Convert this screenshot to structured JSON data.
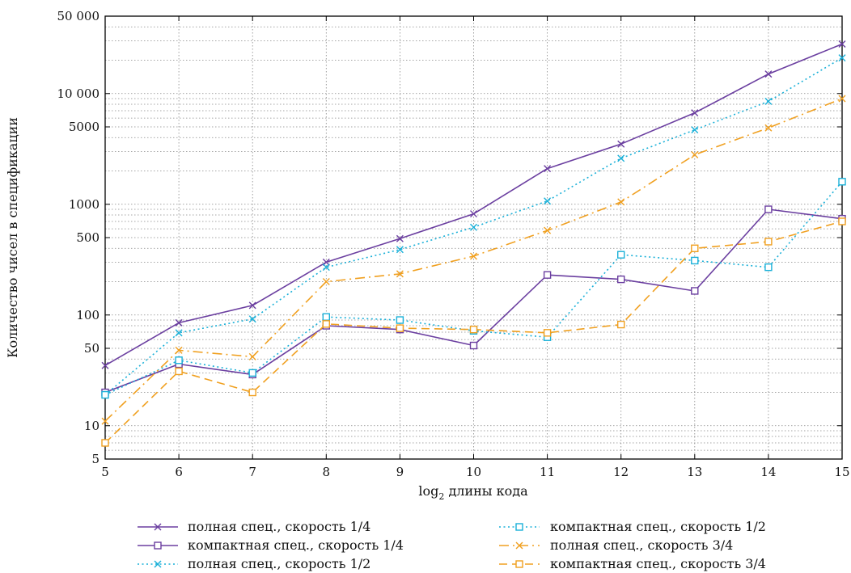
{
  "chart_data": {
    "type": "line",
    "xlabel_prefix": "log",
    "xlabel_sub": "2",
    "xlabel_suffix": " длины кода",
    "ylabel": "Количество чисел в спецификации",
    "y_scale": "log",
    "grid": true,
    "legend_position": "bottom",
    "xlim": [
      5,
      15
    ],
    "ylim": [
      5,
      50000
    ],
    "x_ticks": [
      5,
      6,
      7,
      8,
      9,
      10,
      11,
      12,
      13,
      14,
      15
    ],
    "y_ticks": [
      {
        "value": 5,
        "label": "5"
      },
      {
        "value": 10,
        "label": "10"
      },
      {
        "value": 50,
        "label": "50"
      },
      {
        "value": 100,
        "label": "100"
      },
      {
        "value": 500,
        "label": "500"
      },
      {
        "value": 1000,
        "label": "1000"
      },
      {
        "value": 5000,
        "label": "5000"
      },
      {
        "value": 10000,
        "label": "10 000"
      },
      {
        "value": 50000,
        "label": "50 000"
      }
    ],
    "x": [
      5,
      6,
      7,
      8,
      9,
      10,
      11,
      12,
      13,
      14,
      15
    ],
    "series": [
      {
        "name": "полная спец., скорость 1/4",
        "color": "#6b3fa0",
        "style": "solid",
        "marker": "x",
        "values": [
          35,
          85,
          122,
          300,
          490,
          820,
          2100,
          3500,
          6700,
          15000,
          28000
        ]
      },
      {
        "name": "компактная спец., скорость 1/4",
        "color": "#6b3fa0",
        "style": "solid",
        "marker": "square",
        "values": [
          20,
          36,
          29,
          80,
          74,
          53,
          230,
          210,
          165,
          900,
          740
        ]
      },
      {
        "name": "полная спец., скорость 1/2",
        "color": "#1ab0d8",
        "style": "dotted",
        "marker": "x",
        "values": [
          19,
          69,
          92,
          270,
          390,
          620,
          1070,
          2600,
          4700,
          8500,
          21000
        ]
      },
      {
        "name": "компактная спец., скорость 1/2",
        "color": "#1ab0d8",
        "style": "dotted",
        "marker": "square",
        "values": [
          19,
          39,
          30,
          96,
          90,
          72,
          63,
          350,
          310,
          270,
          1600
        ]
      },
      {
        "name": "полная спец., скорость 3/4",
        "color": "#f0a020",
        "style": "dashdot",
        "marker": "x",
        "values": [
          11,
          48,
          42,
          200,
          235,
          340,
          580,
          1050,
          2800,
          4900,
          9000
        ]
      },
      {
        "name": "компактная спец., скорость 3/4",
        "color": "#f0a020",
        "style": "dashed",
        "marker": "square",
        "values": [
          7,
          31,
          20,
          83,
          76,
          74,
          69,
          82,
          400,
          460,
          700
        ]
      }
    ]
  }
}
